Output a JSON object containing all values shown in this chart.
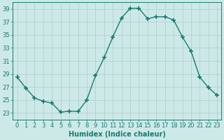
{
  "x": [
    0,
    1,
    2,
    3,
    4,
    5,
    6,
    7,
    8,
    9,
    10,
    11,
    12,
    13,
    14,
    15,
    16,
    17,
    18,
    19,
    20,
    21,
    22,
    23
  ],
  "y": [
    28.5,
    26.8,
    25.3,
    24.8,
    24.5,
    23.1,
    23.3,
    23.2,
    25.0,
    28.7,
    31.5,
    34.7,
    37.6,
    39.1,
    39.1,
    37.5,
    37.8,
    37.8,
    37.3,
    34.7,
    32.5,
    28.5,
    26.9,
    25.7
  ],
  "line_color": "#1a7a6e",
  "marker": "+",
  "marker_size": 4,
  "marker_linewidth": 1.2,
  "bg_color": "#cce9e8",
  "grid_color": "#b0d0ce",
  "xlabel": "Humidex (Indice chaleur)",
  "xlim": [
    -0.5,
    23.5
  ],
  "ylim": [
    22.0,
    40.0
  ],
  "yticks": [
    23,
    25,
    27,
    29,
    31,
    33,
    35,
    37,
    39
  ],
  "xticks": [
    0,
    1,
    2,
    3,
    4,
    5,
    6,
    7,
    8,
    9,
    10,
    11,
    12,
    13,
    14,
    15,
    16,
    17,
    18,
    19,
    20,
    21,
    22,
    23
  ],
  "tick_color": "#1a7a6e",
  "label_color": "#1a7a6e",
  "xlabel_fontsize": 7,
  "tick_fontsize": 6,
  "linewidth": 1.0,
  "figsize": [
    3.2,
    2.0
  ],
  "dpi": 100
}
